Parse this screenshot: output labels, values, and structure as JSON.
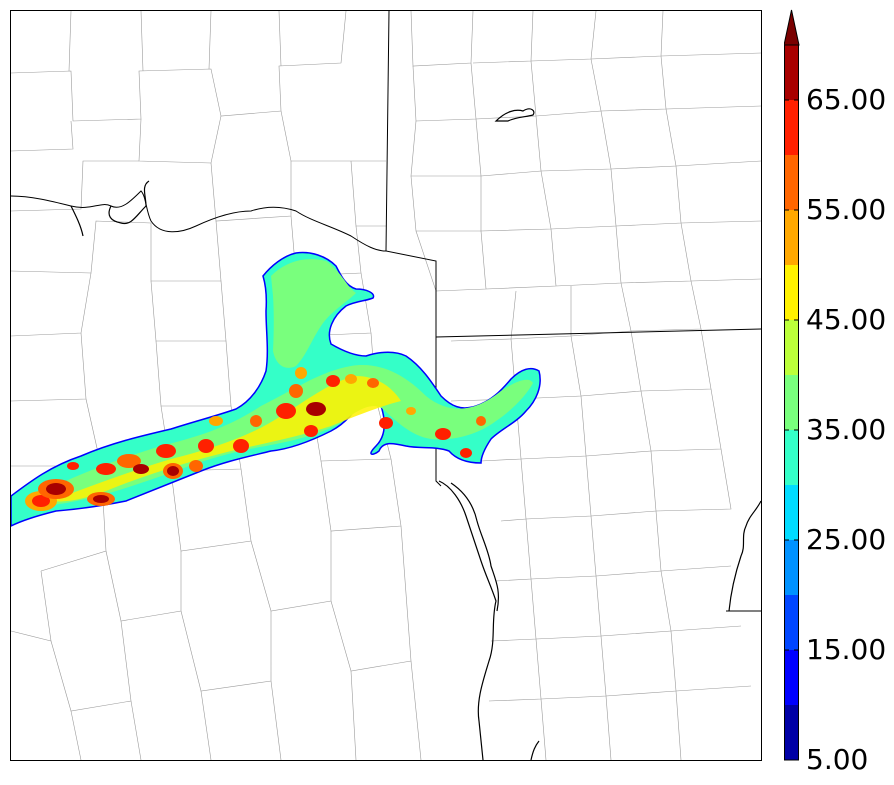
{
  "colorbar": {
    "tick_labels": [
      "5.00",
      "15.00",
      "25.00",
      "35.00",
      "45.00",
      "55.00",
      "65.00"
    ],
    "min": 5,
    "max": 70,
    "extend": "max",
    "extend_color": "#7a0000",
    "bins": [
      {
        "from": 5,
        "to": 10,
        "color": "#0000a6"
      },
      {
        "from": 10,
        "to": 15,
        "color": "#0000ff"
      },
      {
        "from": 15,
        "to": 20,
        "color": "#0046ff"
      },
      {
        "from": 20,
        "to": 25,
        "color": "#0092ff"
      },
      {
        "from": 25,
        "to": 30,
        "color": "#00dcff"
      },
      {
        "from": 30,
        "to": 35,
        "color": "#34ffc8"
      },
      {
        "from": 35,
        "to": 40,
        "color": "#79ff7d"
      },
      {
        "from": 40,
        "to": 45,
        "color": "#bcff3a"
      },
      {
        "from": 45,
        "to": 50,
        "color": "#fff200"
      },
      {
        "from": 50,
        "to": 55,
        "color": "#ffa800"
      },
      {
        "from": 55,
        "to": 60,
        "color": "#ff6600"
      },
      {
        "from": 60,
        "to": 65,
        "color": "#ff2000"
      },
      {
        "from": 65,
        "to": 70,
        "color": "#a80000"
      }
    ]
  },
  "map": {
    "features": [
      "county-boundaries",
      "state-boundaries",
      "river-outlines",
      "reflectivity-field"
    ],
    "colors": {
      "county_line": "#9a9a9a",
      "state_line": "#000000",
      "river": "#000000",
      "field_outline": "#0000ff"
    }
  }
}
